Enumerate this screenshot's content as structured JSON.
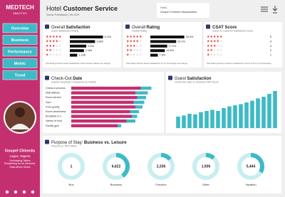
{
  "sidebar": {
    "logo_main": "MEDTECH",
    "logo_sub": "ANALYTICS",
    "nav": [
      "Overview",
      "Business",
      "Performance",
      "Metric",
      "Trend"
    ],
    "profile": {
      "name": "Gospel Chinedu",
      "location": "Lagos, Nigeria",
      "bio": "Developing Tables Storytelling for an Informed, Data-driven World"
    }
  },
  "header": {
    "title_light": "Hotel",
    "title_bold": "Customer Service",
    "subtitle": "Guest Feedback | Viz #29",
    "greeting": "Hello,",
    "user": "Gospel Chinedu Nwachukwu"
  },
  "cards": [
    {
      "type": "bar",
      "title_light": "Overall",
      "title_bold": "Satisfaction",
      "subtitle": "Guest Satisfaction Rating",
      "stars": [
        5,
        4,
        3,
        2,
        1
      ],
      "values": [
        5120,
        3892,
        2541,
        2184,
        1136
      ],
      "value_labels": [
        "5,120",
        "3,892",
        "2,541",
        "2,184",
        "1,136"
      ],
      "color": "#111111",
      "xlim": [
        0,
        5500
      ],
      "note": "Star Rating Shows Guest Satisfaction Performance (Values are ratings)"
    },
    {
      "type": "bar",
      "title_light": "Overall",
      "title_bold": "Rating",
      "subtitle": "Facility Rating",
      "stars": [
        5,
        4,
        3,
        2,
        1
      ],
      "values": [
        34.3,
        26.1,
        17.0,
        14.6,
        7.6
      ],
      "value_labels": [
        "34.3%",
        "26.1%",
        "17.0%",
        "14.6%",
        "7.6%"
      ],
      "color": "#111111",
      "xlim": [
        0,
        36
      ],
      "note": "Star Rating Shows Guest Satisfaction by % percentage and ratings"
    },
    {
      "type": "stars",
      "title_light": "",
      "title_bold": "CSAT Score",
      "subtitle": "Guest vs Customer Satisfaction Score",
      "stars": [
        5,
        4,
        3,
        2,
        1
      ],
      "note": "Star Rating Shows Customer Satisfaction Score (1% by % percentage)"
    }
  ],
  "checkout": {
    "type": "hbar-stacked",
    "title_light": "Check-Out",
    "title_bold": "Date",
    "subtitle": "Guests' Feedback Comparison by Facility",
    "categories": [
      "Check-in process",
      "Staff attitude",
      "Room service",
      "Gym",
      "Food quality",
      "Room cleanliness",
      "Breakfast & b...",
      "Variety of food",
      "Facility gym"
    ],
    "series": [
      {
        "color": "#c4306f",
        "values": [
          78,
          72,
          74,
          70,
          72,
          66,
          68,
          62,
          52
        ]
      },
      {
        "color": "#3dbac6",
        "values": [
          12,
          14,
          10,
          12,
          8,
          10,
          6,
          10,
          4
        ]
      }
    ],
    "xlim": [
      0,
      100
    ]
  },
  "satisfaction": {
    "type": "bar",
    "title_light": "Guest",
    "title_bold": "Satisfaction",
    "subtitle": "Check-Out Date vs. Monthly CSAT Score",
    "values": [
      20,
      22,
      25,
      24,
      28,
      30,
      32,
      30,
      35,
      38,
      40,
      42,
      45,
      48,
      52,
      55,
      60,
      65
    ],
    "color": "#3dbac6",
    "ylim": [
      0,
      70
    ]
  },
  "purpose": {
    "type": "donut",
    "title_light": "Purpose of Stay:",
    "title_bold": "Business vs. Leisure",
    "subtitle": "Purpose vs. RPS Metric",
    "categories": [
      "Bus",
      "Business",
      "Function",
      "Other",
      "Vacation"
    ],
    "values": [
      1,
      6622,
      2336,
      1936,
      5444
    ],
    "value_labels": [
      "1",
      "6,622",
      "2,336",
      "1,936",
      "5,444"
    ],
    "color": "#3dbac6",
    "track": "#c9eef1"
  }
}
